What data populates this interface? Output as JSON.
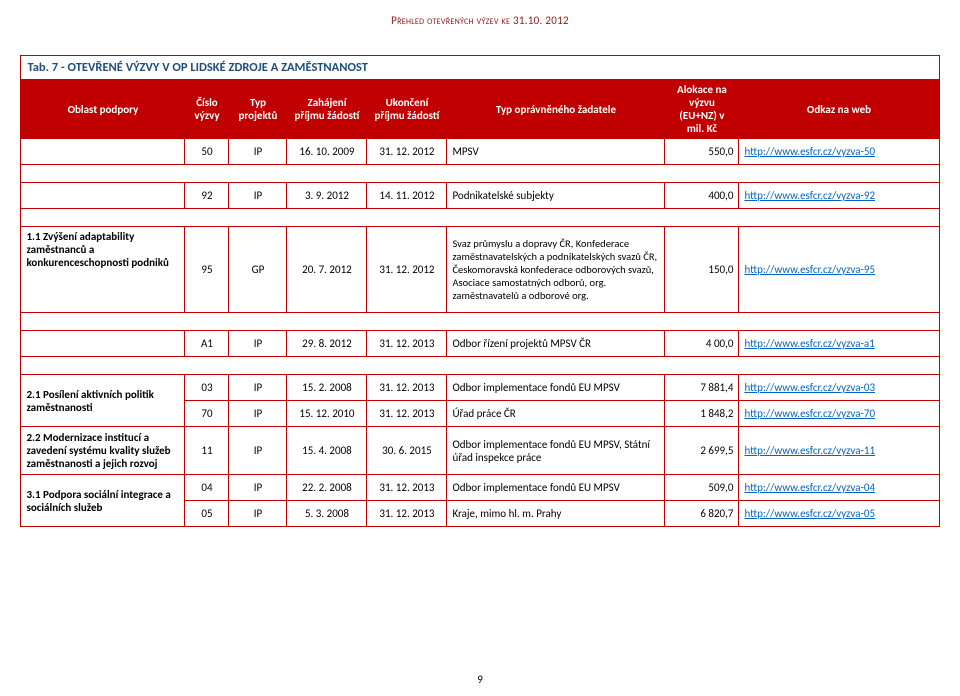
{
  "page": {
    "header_small": "Přehled otevřených výzev ke 31.10. 2012",
    "page_number": "9"
  },
  "table": {
    "title": "Tab. 7 - OTEVŘENÉ VÝZVY V OP LIDSKÉ ZDROJE A ZAMĚSTNANOST",
    "headers": {
      "c1": "Oblast podpory",
      "c2": "Číslo výzvy",
      "c3": "Typ projektů",
      "c4": "Zahájení příjmu žádostí",
      "c5": "Ukončení příjmu žádostí",
      "c6": "Typ oprávněného žadatele",
      "c7": "Alokace na výzvu (EU+NZ) v mil. Kč",
      "c8": "Odkaz na web"
    },
    "rows": [
      {
        "area": "",
        "cislo": "50",
        "typ": "IP",
        "zah": "16. 10. 2009",
        "ukon": "31. 12. 2012",
        "zadatel": "MPSV",
        "alok": "550,0",
        "link": "http://www.esfcr.cz/vyzva-50"
      },
      {
        "area": "",
        "cislo": "92",
        "typ": "IP",
        "zah": "3. 9. 2012",
        "ukon": "14. 11. 2012",
        "zadatel": "Podnikatelské subjekty",
        "alok": "400,0",
        "link": "http://www.esfcr.cz/vyzva-92"
      },
      {
        "area": "1.1 Zvýšení adaptability zaměstnanců a konkurenceschopnosti podniků",
        "area_bold": true,
        "cislo": "95",
        "typ": "GP",
        "zah": "20. 7. 2012",
        "ukon": "31. 12. 2012",
        "zadatel": "Svaz průmyslu a dopravy ČR, Konfederace zaměstnavatelských a podnikatelských svazů ČR, Českomoravská konfederace odborových svazů, Asociace samostatných odborů, org. zaměstnavatelů a odborové org.",
        "alok": "150,0",
        "link": "http://www.esfcr.cz/vyzva-95",
        "tall": true
      },
      {
        "area": "",
        "cislo": "A1",
        "typ": "IP",
        "zah": "29. 8. 2012",
        "ukon": "31. 12. 2013",
        "zadatel": "Odbor řízení projektů MPSV ČR",
        "alok": "4 00,0",
        "link": "http://www.esfcr.cz/vyzva-a1"
      },
      {
        "area": "",
        "cislo": "03",
        "typ": "IP",
        "zah": "15. 2. 2008",
        "ukon": "31. 12. 2013",
        "zadatel": "Odbor implementace fondů EU MPSV",
        "alok": "7 881,4",
        "link": "http://www.esfcr.cz/vyzva-03",
        "group_area": "2.1 Posílení aktivních politik zaměstnanosti",
        "group_span": 2
      },
      {
        "area": "",
        "cislo": "70",
        "typ": "IP",
        "zah": "15. 12. 2010",
        "ukon": "31. 12. 2013",
        "zadatel": "Úřad práce ČR",
        "alok": "1 848,2",
        "link": "http://www.esfcr.cz/vyzva-70"
      },
      {
        "area": "2.2 Modernizace institucí a zavedení systému kvality služeb zaměstnanosti a jejich rozvoj",
        "area_bold": true,
        "cislo": "11",
        "typ": "IP",
        "zah": "15. 4. 2008",
        "ukon": "30. 6. 2015",
        "zadatel": "Odbor implementace fondů EU MPSV, Státní úřad inspekce práce",
        "alok": "2 699,5",
        "link": "http://www.esfcr.cz/vyzva-11"
      },
      {
        "area": "3.1 Podpora sociální integrace a sociálních služeb",
        "area_bold": true,
        "cislo": "04",
        "typ": "IP",
        "zah": "22. 2. 2008",
        "ukon": "31. 12. 2013",
        "zadatel": "Odbor implementace fondů EU MPSV",
        "alok": "509,0",
        "link": "http://www.esfcr.cz/vyzva-04",
        "group_span": 2,
        "group_area": "3.1 Podpora sociální integrace a sociálních služeb"
      },
      {
        "area": "",
        "cislo": "05",
        "typ": "IP",
        "zah": "5. 3. 2008",
        "ukon": "31. 12. 2013",
        "zadatel": "Kraje, mimo hl. m. Prahy",
        "alok": "6 820,7",
        "link": "http://www.esfcr.cz/vyzva-05"
      }
    ]
  }
}
